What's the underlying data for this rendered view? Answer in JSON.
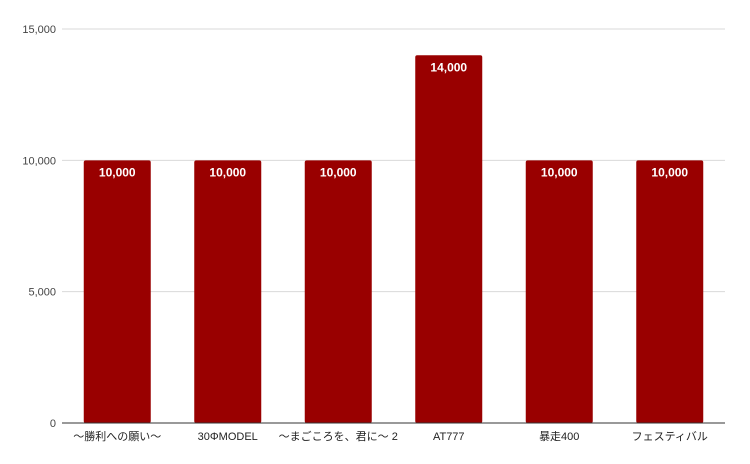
{
  "chart_data": {
    "type": "bar",
    "title": "",
    "xlabel": "",
    "ylabel": "",
    "categories": [
      "〜勝利への願い〜",
      "30ΦMODEL",
      "〜まごころを、君に〜 2",
      "AT777",
      "暴走400",
      "フェスティバル"
    ],
    "values": [
      10000,
      10000,
      10000,
      14000,
      10000,
      10000
    ],
    "data_labels": [
      "10,000",
      "10,000",
      "10,000",
      "14,000",
      "10,000",
      "10,000"
    ],
    "ylim": [
      0,
      15000
    ],
    "yticks": [
      0,
      5000,
      10000,
      15000
    ],
    "ytick_labels": [
      "0",
      "5,000",
      "10,000",
      "15,000"
    ],
    "grid": true,
    "legend": "none",
    "colors": {
      "bar": "#990000",
      "grid": "#d9d9d9",
      "axis": "#333333"
    }
  }
}
